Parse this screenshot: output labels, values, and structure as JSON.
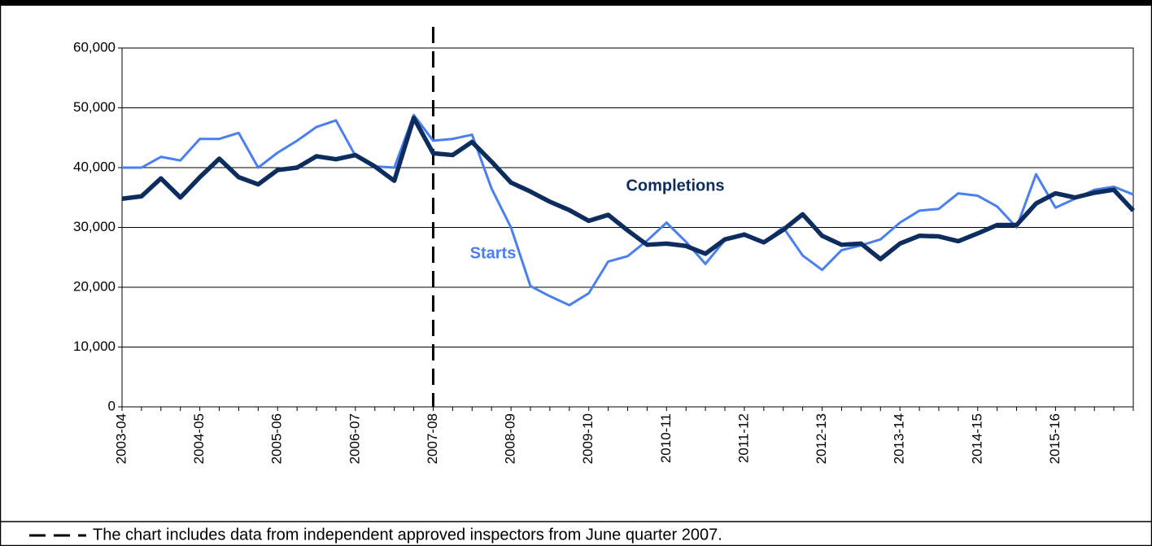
{
  "chart_data": {
    "type": "line",
    "categories": [
      "2003-04",
      null,
      null,
      null,
      "2004-05",
      null,
      null,
      null,
      "2005-06",
      null,
      null,
      null,
      "2006-07",
      null,
      null,
      null,
      "2007-08",
      null,
      null,
      null,
      "2008-09",
      null,
      null,
      null,
      "2009-10",
      null,
      null,
      null,
      "2010-11",
      null,
      null,
      null,
      "2011-12",
      null,
      null,
      null,
      "2012-13",
      null,
      null,
      null,
      "2013-14",
      null,
      null,
      null,
      "2014-15",
      null,
      null,
      null,
      "2015-16",
      null,
      null,
      null,
      null
    ],
    "series": [
      {
        "name": "Starts",
        "color": "#4a7ff0",
        "values": [
          40000,
          40000,
          41800,
          41200,
          44800,
          44800,
          45800,
          40000,
          42500,
          44500,
          46800,
          47900,
          42000,
          40200,
          40000,
          48800,
          44500,
          44800,
          45500,
          36500,
          30000,
          20200,
          18500,
          17000,
          19000,
          24300,
          25200,
          27800,
          30800,
          27600,
          23900,
          27900,
          29000,
          27500,
          30000,
          25300,
          22900,
          26200,
          27000,
          28000,
          30800,
          32800,
          33100,
          35700,
          35300,
          33500,
          30000,
          38900,
          33300,
          34800,
          36300,
          36800,
          35500
        ]
      },
      {
        "name": "Completions",
        "color": "#0d2d5e",
        "values": [
          34800,
          35200,
          38200,
          35000,
          38400,
          41500,
          38400,
          37200,
          39600,
          40000,
          41900,
          41400,
          42100,
          40200,
          37800,
          48300,
          42400,
          42100,
          44300,
          41000,
          37500,
          36000,
          34300,
          32900,
          31100,
          32100,
          29500,
          27100,
          27300,
          26900,
          25600,
          28000,
          28800,
          27500,
          29600,
          32200,
          28600,
          27100,
          27300,
          24700,
          27300,
          28600,
          28500,
          27700,
          29000,
          30400,
          30400,
          34000,
          35700,
          35000,
          35800,
          36300,
          32800
        ]
      }
    ],
    "ylim": [
      0,
      60000
    ],
    "yticks": [
      0,
      {
        "value": 10000,
        "label": "10,000"
      },
      {
        "value": 20000,
        "label": "20,000"
      },
      {
        "value": 30000,
        "label": "30,000"
      },
      {
        "value": 40000,
        "label": "40,000"
      },
      {
        "value": 50000,
        "label": "50,000"
      },
      {
        "value": 60000,
        "label": "60,000"
      }
    ],
    "grid": true,
    "vline_at": "2007-08",
    "note": "The chart includes data from independent approved inspectors from June quarter 2007."
  }
}
